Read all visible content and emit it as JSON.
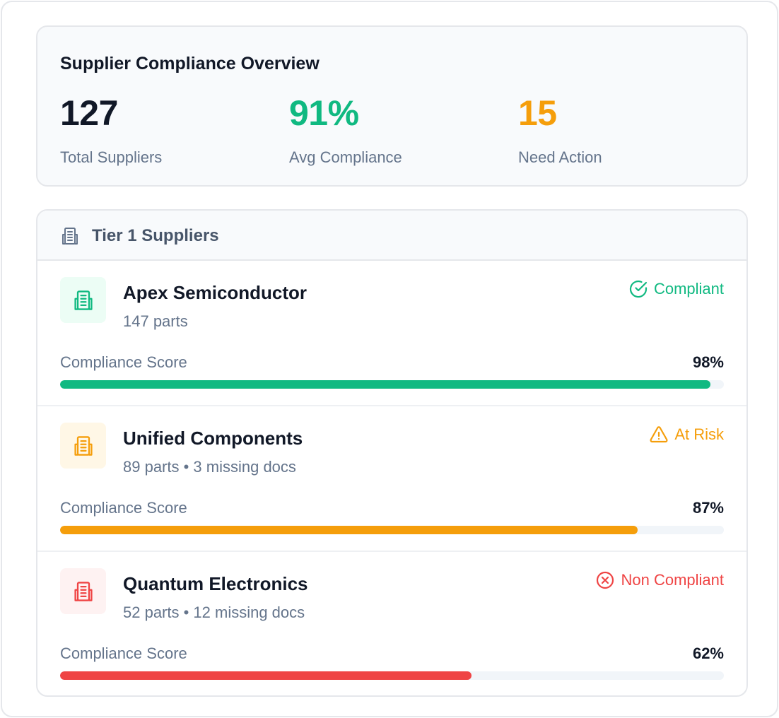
{
  "overview": {
    "title": "Supplier Compliance Overview",
    "stats": [
      {
        "value": "127",
        "label": "Total Suppliers",
        "color": "#111827"
      },
      {
        "value": "91%",
        "label": "Avg Compliance",
        "color": "#10b981"
      },
      {
        "value": "15",
        "label": "Need Action",
        "color": "#f59e0b"
      }
    ]
  },
  "tier": {
    "title": "Tier 1 Suppliers",
    "icon": "building-icon"
  },
  "suppliers": [
    {
      "name": "Apex Semiconductor",
      "meta": "147 parts",
      "status": "Compliant",
      "status_icon": "check-circle-icon",
      "color": "#10b981",
      "tint": "#ecfdf5",
      "score_label": "Compliance Score",
      "score": "98%",
      "score_fraction": 0.98
    },
    {
      "name": "Unified Components",
      "meta": "89 parts • 3 missing docs",
      "status": "At Risk",
      "status_icon": "warning-triangle-icon",
      "color": "#f59e0b",
      "tint": "#fff7e6",
      "score_label": "Compliance Score",
      "score": "87%",
      "score_fraction": 0.87
    },
    {
      "name": "Quantum Electronics",
      "meta": "52 parts • 12 missing docs",
      "status": "Non Compliant",
      "status_icon": "x-circle-icon",
      "color": "#ef4444",
      "tint": "#fef2f2",
      "score_label": "Compliance Score",
      "score": "62%",
      "score_fraction": 0.62
    }
  ]
}
